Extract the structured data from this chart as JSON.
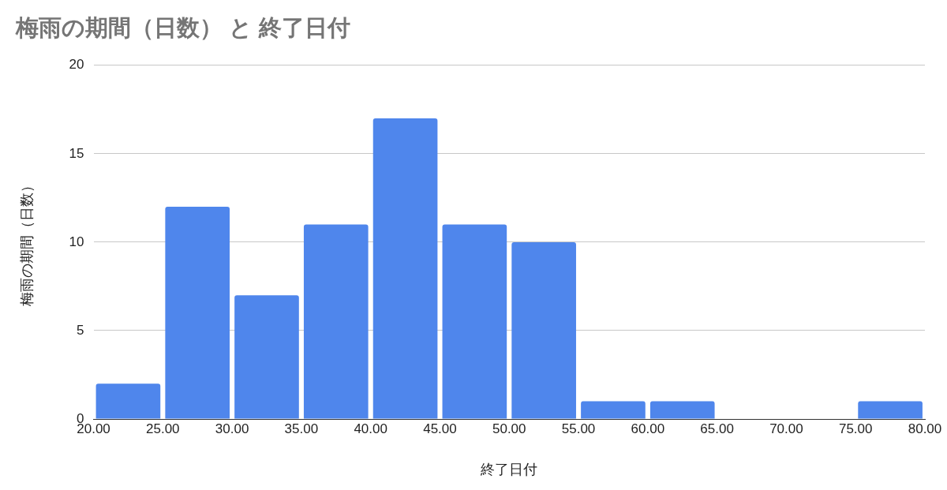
{
  "chart_data": {
    "type": "histogram",
    "title": "梅雨の期間（日数） と 終了日付",
    "xlabel": "終了日付",
    "ylabel": "梅雨の期間（日数）",
    "bins": [
      20,
      25,
      30,
      35,
      40,
      45,
      50,
      55,
      60,
      65,
      70,
      75,
      80
    ],
    "values": [
      2,
      12,
      7,
      11,
      17,
      11,
      10,
      1,
      1,
      0,
      0,
      1
    ],
    "color": "#4f86ec",
    "xlim": [
      20,
      80
    ],
    "xticks": [
      {
        "value": 20,
        "label": "20.00"
      },
      {
        "value": 25,
        "label": "25.00"
      },
      {
        "value": 30,
        "label": "30.00"
      },
      {
        "value": 35,
        "label": "35.00"
      },
      {
        "value": 40,
        "label": "40.00"
      },
      {
        "value": 45,
        "label": "45.00"
      },
      {
        "value": 50,
        "label": "50.00"
      },
      {
        "value": 55,
        "label": "55.00"
      },
      {
        "value": 60,
        "label": "60.00"
      },
      {
        "value": 65,
        "label": "65.00"
      },
      {
        "value": 70,
        "label": "70.00"
      },
      {
        "value": 75,
        "label": "75.00"
      },
      {
        "value": 80,
        "label": "80.00"
      }
    ],
    "ylim": [
      0,
      20
    ],
    "yticks": [
      0,
      5,
      10,
      15,
      20
    ],
    "grid": "y"
  }
}
